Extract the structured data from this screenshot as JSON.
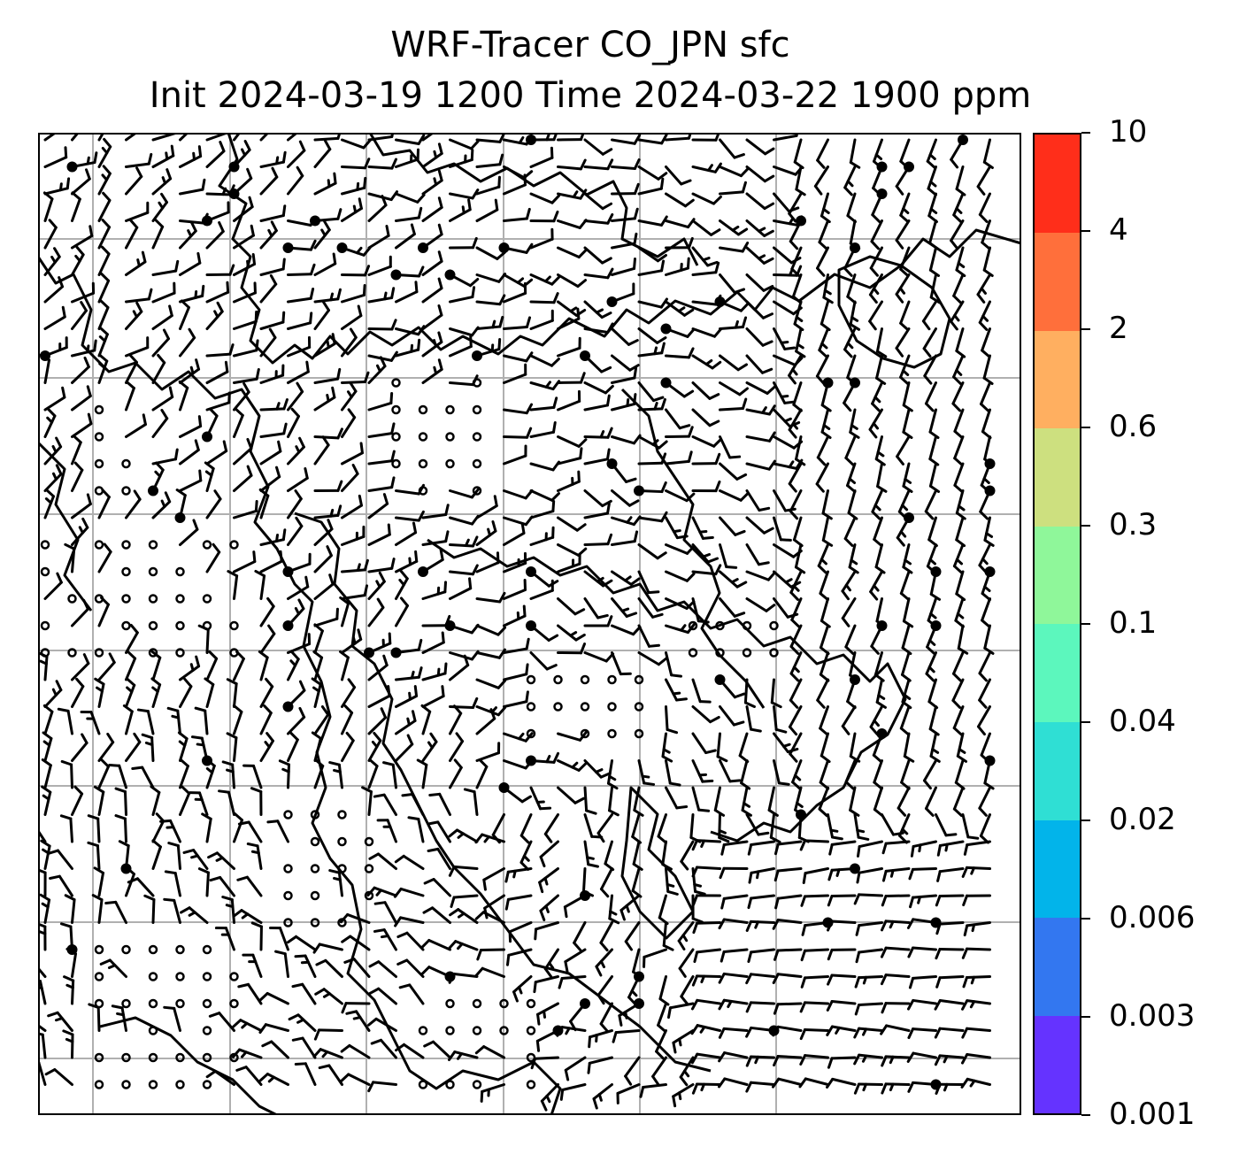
{
  "title": {
    "line1": "WRF-Tracer CO_JPN sfc",
    "line2": "Init 2024-03-19 1200 Time 2024-03-22 1900 ppm"
  },
  "map": {
    "type": "wind-barb surface map with coastlines",
    "gridlines": "on",
    "colors": {
      "barbs": "#000000",
      "coast": "#000000",
      "grid": "#b0b0b0",
      "frame": "#000000"
    }
  },
  "colorbar": {
    "ticks": [
      "0.001",
      "0.003",
      "0.006",
      "0.02",
      "0.04",
      "0.1",
      "0.3",
      "0.6",
      "2",
      "4",
      "10"
    ],
    "colors": [
      "#6533ff",
      "#3377f0",
      "#02b4ea",
      "#2fdfd4",
      "#5cf7bd",
      "#8ff79a",
      "#cde07f",
      "#ffaf60",
      "#ff6f3b",
      "#ff2e1a"
    ]
  }
}
